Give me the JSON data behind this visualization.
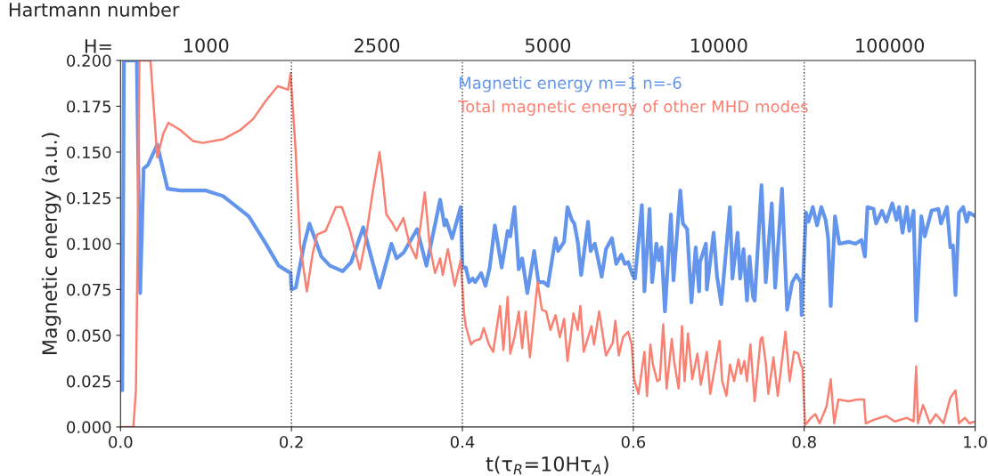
{
  "chart_data": {
    "type": "line",
    "xlabel": "t(τ$_{R}$=10Hτ$_{A}$)",
    "ylabel": "Magnetic energy (a.u.)",
    "annotations": [
      "Hartmann number",
      "H=",
      "1000",
      "2500",
      "5000",
      "10000",
      "100000"
    ],
    "xlim": [
      0,
      1
    ],
    "ylim": [
      0,
      0.2
    ],
    "xticks": [
      {
        "value": 0,
        "label": "0.0"
      },
      {
        "value": 0.2,
        "label": "0.2"
      },
      {
        "value": 0.4,
        "label": "0.4"
      },
      {
        "value": 0.6,
        "label": "0.6"
      },
      {
        "value": 0.8,
        "label": "0.8"
      },
      {
        "value": 1,
        "label": "1.0"
      }
    ],
    "yticks": [
      {
        "value": 0,
        "label": "0.000"
      },
      {
        "value": 0.025,
        "label": "0.025"
      },
      {
        "value": 0.05,
        "label": "0.050"
      },
      {
        "value": 0.075,
        "label": "0.075"
      },
      {
        "value": 0.1,
        "label": "0.100"
      },
      {
        "value": 0.125,
        "label": "0.125"
      },
      {
        "value": 0.15,
        "label": "0.150"
      },
      {
        "value": 0.175,
        "label": "0.175"
      },
      {
        "value": 0.2,
        "label": "0.200"
      }
    ],
    "ref_lines": [
      {
        "axis": "x",
        "value": 0.2,
        "color": "#333333",
        "line_style": "dotted"
      },
      {
        "axis": "x",
        "value": 0.4,
        "color": "#333333",
        "line_style": "dotted"
      },
      {
        "axis": "x",
        "value": 0.6,
        "color": "#333333",
        "line_style": "dotted"
      },
      {
        "axis": "x",
        "value": 0.8,
        "color": "#333333",
        "line_style": "dotted"
      }
    ],
    "grid": false,
    "legend": "top",
    "marker": "none",
    "line_style": "solid",
    "series": [
      {
        "name": "Magnetic energy m=1 n=-6",
        "color": "#6495ed",
        "x": [
          0.002,
          0.004,
          0.019,
          0.023,
          0.027,
          0.032,
          0.043,
          0.05,
          0.055,
          0.07,
          0.1,
          0.12,
          0.15,
          0.17,
          0.185,
          0.199,
          0.2,
          0.205,
          0.215,
          0.221,
          0.235,
          0.245,
          0.26,
          0.27,
          0.284,
          0.303,
          0.317,
          0.323,
          0.331,
          0.347,
          0.358,
          0.374,
          0.379,
          0.381,
          0.388,
          0.398,
          0.4,
          0.404,
          0.408,
          0.412,
          0.415,
          0.422,
          0.427,
          0.432,
          0.438,
          0.446,
          0.453,
          0.456,
          0.461,
          0.466,
          0.47,
          0.476,
          0.484,
          0.489,
          0.495,
          0.5,
          0.509,
          0.512,
          0.519,
          0.523,
          0.528,
          0.531,
          0.535,
          0.539,
          0.547,
          0.55,
          0.555,
          0.563,
          0.568,
          0.575,
          0.58,
          0.586,
          0.59,
          0.594,
          0.599,
          0.602,
          0.61,
          0.613,
          0.619,
          0.622,
          0.627,
          0.63,
          0.633,
          0.637,
          0.644,
          0.647,
          0.655,
          0.658,
          0.663,
          0.668,
          0.673,
          0.677,
          0.678,
          0.685,
          0.686,
          0.694,
          0.698,
          0.703,
          0.713,
          0.716,
          0.722,
          0.725,
          0.729,
          0.733,
          0.736,
          0.74,
          0.742,
          0.75,
          0.755,
          0.762,
          0.766,
          0.774,
          0.78,
          0.786,
          0.791,
          0.796,
          0.797,
          0.802,
          0.805,
          0.81,
          0.815,
          0.82,
          0.825,
          0.828,
          0.831,
          0.836,
          0.841,
          0.852,
          0.86,
          0.867,
          0.871,
          0.874,
          0.881,
          0.884,
          0.891,
          0.896,
          0.903,
          0.908,
          0.911,
          0.915,
          0.92,
          0.923,
          0.928,
          0.931,
          0.937,
          0.941,
          0.949,
          0.957,
          0.96,
          0.967,
          0.971,
          0.974,
          0.977,
          0.981,
          0.986,
          0.99,
          0.993,
          1.0
        ],
        "values": [
          0.02,
          0.2,
          0.2,
          0.073,
          0.141,
          0.143,
          0.154,
          0.14,
          0.13,
          0.129,
          0.129,
          0.126,
          0.115,
          0.1,
          0.088,
          0.084,
          0.075,
          0.076,
          0.1,
          0.111,
          0.093,
          0.088,
          0.085,
          0.09,
          0.109,
          0.076,
          0.1,
          0.092,
          0.095,
          0.108,
          0.088,
          0.124,
          0.11,
          0.113,
          0.103,
          0.12,
          0.087,
          0.087,
          0.079,
          0.081,
          0.079,
          0.084,
          0.077,
          0.087,
          0.11,
          0.087,
          0.107,
          0.104,
          0.12,
          0.086,
          0.092,
          0.073,
          0.096,
          0.079,
          0.079,
          0.077,
          0.103,
          0.096,
          0.101,
          0.12,
          0.113,
          0.111,
          0.101,
          0.083,
          0.112,
          0.096,
          0.1,
          0.082,
          0.097,
          0.103,
          0.089,
          0.094,
          0.089,
          0.09,
          0.083,
          0.081,
          0.121,
          0.074,
          0.119,
          0.079,
          0.1,
          0.091,
          0.098,
          0.063,
          0.116,
          0.08,
          0.129,
          0.111,
          0.108,
          0.068,
          0.098,
          0.074,
          0.09,
          0.1,
          0.075,
          0.106,
          0.082,
          0.067,
          0.12,
          0.081,
          0.106,
          0.081,
          0.097,
          0.069,
          0.093,
          0.071,
          0.069,
          0.132,
          0.079,
          0.122,
          0.076,
          0.13,
          0.064,
          0.079,
          0.083,
          0.079,
          0.061,
          0.117,
          0.112,
          0.12,
          0.11,
          0.12,
          0.113,
          0.103,
          0.066,
          0.115,
          0.1,
          0.101,
          0.1,
          0.102,
          0.093,
          0.12,
          0.119,
          0.111,
          0.118,
          0.112,
          0.122,
          0.113,
          0.12,
          0.106,
          0.12,
          0.107,
          0.118,
          0.058,
          0.115,
          0.104,
          0.118,
          0.119,
          0.111,
          0.12,
          0.098,
          0.099,
          0.072,
          0.117,
          0.12,
          0.112,
          0.117,
          0.115
        ]
      },
      {
        "name": "Total magnetic energy of other MHD modes",
        "color": "#fa8072",
        "x": [
          0,
          0.015,
          0.018,
          0.02,
          0.022,
          0.035,
          0.043,
          0.05,
          0.056,
          0.07,
          0.085,
          0.096,
          0.12,
          0.14,
          0.155,
          0.17,
          0.184,
          0.196,
          0.199,
          0.205,
          0.21,
          0.218,
          0.225,
          0.23,
          0.24,
          0.252,
          0.259,
          0.268,
          0.28,
          0.286,
          0.295,
          0.303,
          0.306,
          0.311,
          0.317,
          0.323,
          0.331,
          0.338,
          0.346,
          0.356,
          0.362,
          0.368,
          0.374,
          0.377,
          0.383,
          0.391,
          0.398,
          0.402,
          0.404,
          0.41,
          0.414,
          0.421,
          0.425,
          0.431,
          0.436,
          0.444,
          0.448,
          0.453,
          0.456,
          0.461,
          0.466,
          0.47,
          0.474,
          0.479,
          0.488,
          0.493,
          0.498,
          0.503,
          0.509,
          0.514,
          0.519,
          0.523,
          0.53,
          0.535,
          0.538,
          0.542,
          0.551,
          0.554,
          0.56,
          0.568,
          0.576,
          0.579,
          0.583,
          0.588,
          0.594,
          0.598,
          0.601,
          0.606,
          0.613,
          0.616,
          0.62,
          0.623,
          0.628,
          0.631,
          0.635,
          0.639,
          0.645,
          0.648,
          0.653,
          0.657,
          0.66,
          0.664,
          0.669,
          0.675,
          0.679,
          0.686,
          0.69,
          0.696,
          0.701,
          0.704,
          0.709,
          0.713,
          0.718,
          0.723,
          0.726,
          0.73,
          0.733,
          0.737,
          0.742,
          0.749,
          0.751,
          0.755,
          0.758,
          0.764,
          0.769,
          0.778,
          0.783,
          0.788,
          0.793,
          0.796,
          0.798,
          0.801,
          0.808,
          0.813,
          0.818,
          0.826,
          0.831,
          0.835,
          0.84,
          0.852,
          0.862,
          0.87,
          0.872,
          0.882,
          0.896,
          0.906,
          0.92,
          0.928,
          0.931,
          0.933,
          0.939,
          0.947,
          0.954,
          0.963,
          0.971,
          0.977,
          0.981,
          0.988,
          0.993,
          1.0
        ],
        "values": [
          0,
          0,
          0.02,
          0.1,
          0.2,
          0.2,
          0.147,
          0.16,
          0.166,
          0.162,
          0.156,
          0.155,
          0.157,
          0.162,
          0.168,
          0.178,
          0.186,
          0.184,
          0.193,
          0.15,
          0.1,
          0.074,
          0.095,
          0.105,
          0.107,
          0.12,
          0.12,
          0.108,
          0.086,
          0.1,
          0.128,
          0.15,
          0.139,
          0.116,
          0.112,
          0.107,
          0.114,
          0.1,
          0.092,
          0.128,
          0.098,
          0.084,
          0.092,
          0.083,
          0.097,
          0.077,
          0.091,
          0.062,
          0.055,
          0.045,
          0.047,
          0.048,
          0.054,
          0.045,
          0.041,
          0.066,
          0.042,
          0.071,
          0.04,
          0.049,
          0.063,
          0.043,
          0.063,
          0.038,
          0.079,
          0.064,
          0.063,
          0.053,
          0.061,
          0.049,
          0.059,
          0.036,
          0.062,
          0.053,
          0.066,
          0.041,
          0.055,
          0.045,
          0.063,
          0.039,
          0.046,
          0.058,
          0.039,
          0.049,
          0.052,
          0.045,
          0.026,
          0.018,
          0.041,
          0.017,
          0.045,
          0.034,
          0.025,
          0.026,
          0.056,
          0.021,
          0.048,
          0.035,
          0.021,
          0.055,
          0.025,
          0.051,
          0.026,
          0.04,
          0.023,
          0.041,
          0.018,
          0.034,
          0.047,
          0.025,
          0.017,
          0.034,
          0.025,
          0.037,
          0.029,
          0.036,
          0.025,
          0.045,
          0.014,
          0.048,
          0.049,
          0.035,
          0.018,
          0.038,
          0.017,
          0.052,
          0.025,
          0.041,
          0.04,
          0.034,
          0.032,
          0.001,
          0.005,
          0.007,
          0.002,
          0.011,
          0.026,
          0.002,
          0.015,
          0.014,
          0.015,
          0.015,
          0.002,
          0.004,
          0.006,
          0.003,
          0.005,
          0.003,
          0.033,
          0.002,
          0.012,
          0.002,
          0.007,
          0.002,
          0.016,
          0.02,
          0.002,
          0.005,
          0.002,
          0.003
        ]
      }
    ]
  }
}
